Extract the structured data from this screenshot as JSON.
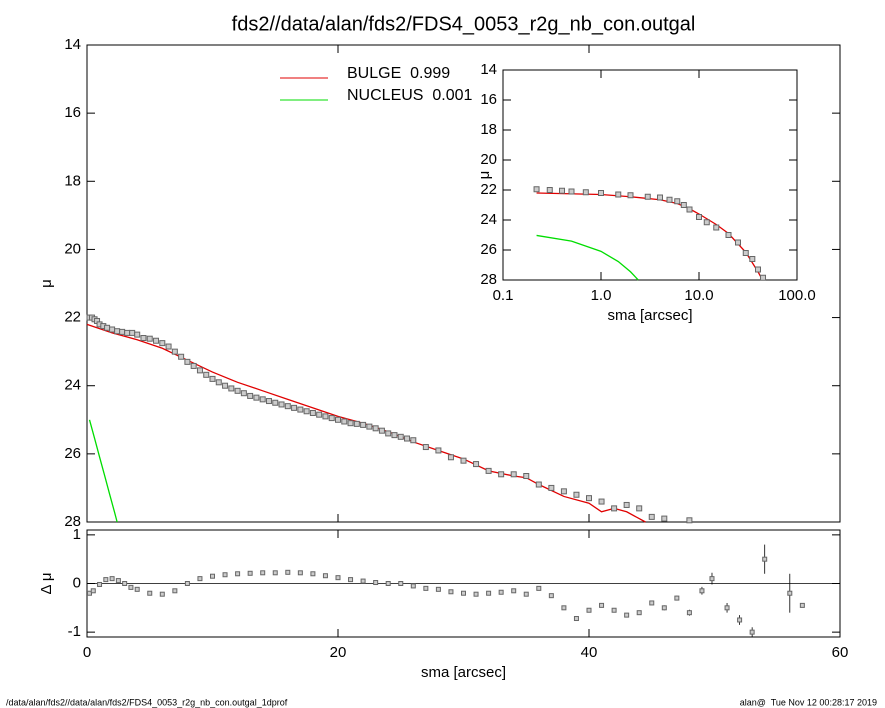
{
  "chart_data": [
    {
      "type": "profile",
      "title": "fds2//data/alan/fds2/FDS4_0053_r2g_nb_con.outgal",
      "ylabel": "μ",
      "xlim": [
        0,
        60
      ],
      "ylim": [
        14,
        28
      ],
      "yreverse": true,
      "yticks": [
        14,
        16,
        18,
        20,
        22,
        24,
        26,
        28
      ],
      "legend": "top",
      "marker_color": "#666666",
      "x": [
        0.2,
        0.4,
        0.6,
        0.8,
        1.0,
        1.3,
        1.6,
        2.0,
        2.4,
        2.8,
        3.2,
        3.6,
        4.0,
        4.5,
        5.0,
        5.5,
        6.0,
        6.5,
        7.0,
        7.5,
        8.0,
        8.5,
        9.0,
        9.5,
        10,
        10.5,
        11,
        11.5,
        12,
        12.5,
        13,
        13.5,
        14,
        14.5,
        15,
        15.5,
        16,
        16.5,
        17,
        17.5,
        18,
        18.5,
        19,
        19.5,
        20,
        20.5,
        21,
        21.5,
        22,
        22.5,
        23,
        23.5,
        24,
        24.5,
        25,
        25.5,
        26,
        27,
        28,
        29,
        30,
        31,
        32,
        33,
        34,
        35,
        36,
        37,
        38,
        39,
        40,
        41,
        42,
        43,
        44,
        45,
        46,
        48
      ],
      "values": [
        22.0,
        22.0,
        22.05,
        22.1,
        22.2,
        22.25,
        22.3,
        22.35,
        22.4,
        22.42,
        22.45,
        22.45,
        22.5,
        22.6,
        22.62,
        22.68,
        22.75,
        22.85,
        23.0,
        23.15,
        23.3,
        23.42,
        23.55,
        23.68,
        23.8,
        23.9,
        24.0,
        24.08,
        24.15,
        24.22,
        24.3,
        24.35,
        24.4,
        24.45,
        24.5,
        24.55,
        24.6,
        24.65,
        24.7,
        24.75,
        24.8,
        24.85,
        24.9,
        24.95,
        25.0,
        25.05,
        25.1,
        25.12,
        25.15,
        25.2,
        25.25,
        25.32,
        25.4,
        25.45,
        25.5,
        25.55,
        25.6,
        25.8,
        25.9,
        26.1,
        26.2,
        26.3,
        26.5,
        26.6,
        26.6,
        26.65,
        26.9,
        27.0,
        27.1,
        27.2,
        27.3,
        27.4,
        27.6,
        27.5,
        27.6,
        27.85,
        27.9,
        27.95
      ],
      "series": [
        {
          "name": "BULGE  0.999",
          "color": "#e00000",
          "x": [
            0,
            2,
            4,
            6,
            8,
            10,
            12,
            14,
            16,
            18,
            20,
            22,
            24,
            26,
            28,
            30,
            32,
            34,
            35,
            36,
            38,
            40,
            41,
            42,
            43,
            44.5
          ],
          "values": [
            22.2,
            22.45,
            22.65,
            22.9,
            23.25,
            23.6,
            23.9,
            24.15,
            24.4,
            24.65,
            24.9,
            25.1,
            25.35,
            25.65,
            25.9,
            26.15,
            26.5,
            26.65,
            26.7,
            26.9,
            27.25,
            27.45,
            27.7,
            27.6,
            27.7,
            28.0
          ]
        },
        {
          "name": "NUCLEUS  0.001",
          "color": "#00dd00",
          "x": [
            0.2,
            0.6,
            1.0,
            1.4,
            1.8,
            2.2,
            2.4
          ],
          "values": [
            25.0,
            25.54,
            26.09,
            26.63,
            27.18,
            27.72,
            28.0
          ]
        }
      ]
    },
    {
      "type": "residual",
      "ylabel": "Δ μ",
      "xlabel": "sma [arcsec]",
      "xlim": [
        0,
        60
      ],
      "ylim": [
        -1.1,
        1.1
      ],
      "xticks": [
        0,
        20,
        40,
        60
      ],
      "yticks": [
        -1,
        0,
        1
      ],
      "marker_color": "#666666",
      "x": [
        0.2,
        0.5,
        1,
        1.5,
        2,
        2.5,
        3,
        3.5,
        4,
        5,
        6,
        7,
        8,
        9,
        10,
        11,
        12,
        13,
        14,
        15,
        16,
        17,
        18,
        19,
        20,
        21,
        22,
        23,
        24,
        25,
        26,
        27,
        28,
        29,
        30,
        31,
        32,
        33,
        34,
        35,
        36,
        37,
        38,
        39,
        40,
        41,
        42,
        43,
        44,
        45,
        46,
        47,
        48,
        49,
        49.8,
        51,
        52,
        53,
        54,
        56,
        57
      ],
      "values": [
        -0.2,
        -0.15,
        -0.02,
        0.08,
        0.1,
        0.06,
        0.0,
        -0.08,
        -0.12,
        -0.2,
        -0.22,
        -0.15,
        0.0,
        0.1,
        0.15,
        0.18,
        0.2,
        0.21,
        0.22,
        0.22,
        0.23,
        0.22,
        0.2,
        0.16,
        0.12,
        0.08,
        0.05,
        0.02,
        0.0,
        0.0,
        -0.05,
        -0.1,
        -0.12,
        -0.17,
        -0.2,
        -0.22,
        -0.2,
        -0.18,
        -0.15,
        -0.22,
        -0.1,
        -0.25,
        -0.5,
        -0.72,
        -0.55,
        -0.45,
        -0.55,
        -0.65,
        -0.6,
        -0.4,
        -0.5,
        -0.3,
        -0.6,
        -0.15,
        0.1,
        -0.5,
        -0.75,
        -1.0,
        0.5,
        -0.2,
        -0.45
      ],
      "errors": [
        0.02,
        0.02,
        0.02,
        0.02,
        0.02,
        0.02,
        0.02,
        0.02,
        0.02,
        0.02,
        0.02,
        0.02,
        0.02,
        0.02,
        0.02,
        0.02,
        0.02,
        0.02,
        0.02,
        0.02,
        0.02,
        0.02,
        0.02,
        0.02,
        0.02,
        0.02,
        0.02,
        0.02,
        0.02,
        0.02,
        0.02,
        0.02,
        0.02,
        0.02,
        0.02,
        0.02,
        0.02,
        0.02,
        0.02,
        0.02,
        0.02,
        0.02,
        0.02,
        0.02,
        0.02,
        0.02,
        0.02,
        0.03,
        0.03,
        0.04,
        0.05,
        0.05,
        0.06,
        0.08,
        0.12,
        0.1,
        0.1,
        0.1,
        0.3,
        0.4,
        0.02
      ]
    },
    {
      "type": "profile",
      "ylabel": "μ",
      "xlabel": "sma [arcsec]",
      "xlog": true,
      "xlim": [
        0.1,
        100
      ],
      "ylim": [
        14,
        28
      ],
      "yreverse": true,
      "xticks": [
        0.1,
        {
          "value": 1,
          "label": "1.0"
        },
        {
          "value": 10,
          "label": "10.0"
        },
        {
          "value": 100,
          "label": "100.0"
        }
      ],
      "yticks": [
        14,
        16,
        18,
        20,
        22,
        24,
        26,
        28
      ],
      "marker_color": "#666666",
      "x": [
        0.22,
        0.3,
        0.4,
        0.5,
        0.7,
        1,
        1.5,
        2,
        3,
        4,
        5,
        6,
        7,
        8,
        10,
        12,
        15,
        20,
        25,
        30,
        35,
        40,
        45
      ],
      "values": [
        21.95,
        22.0,
        22.05,
        22.1,
        22.15,
        22.2,
        22.3,
        22.35,
        22.45,
        22.5,
        22.65,
        22.75,
        23.0,
        23.3,
        23.8,
        24.15,
        24.5,
        25.0,
        25.5,
        26.2,
        26.6,
        27.3,
        27.85
      ],
      "series": [
        {
          "color": "#e00000",
          "x": [
            0.22,
            1,
            2,
            4,
            6,
            8,
            10,
            15,
            20,
            30,
            40,
            44.5
          ],
          "values": [
            22.2,
            22.3,
            22.45,
            22.65,
            22.9,
            23.25,
            23.6,
            24.3,
            24.9,
            26.15,
            27.45,
            28.0
          ]
        },
        {
          "color": "#00dd00",
          "x": [
            0.22,
            0.5,
            1,
            1.5,
            2,
            2.4
          ],
          "values": [
            25.03,
            25.41,
            26.09,
            26.77,
            27.45,
            28.0
          ]
        }
      ]
    }
  ],
  "footer": {
    "left": "/data/alan/fds2//data/alan/fds2/FDS4_0053_r2g_nb_con.outgal_1dprof",
    "right": "alan@  Tue Nov 12 00:28:17 2019"
  }
}
